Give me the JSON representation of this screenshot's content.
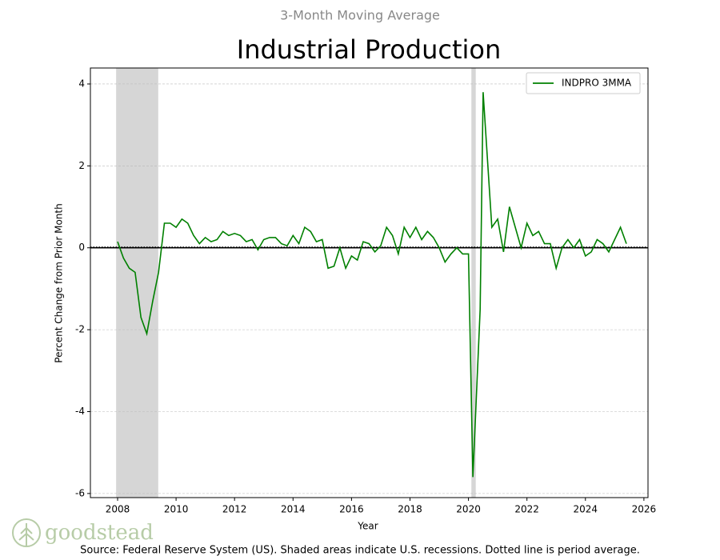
{
  "chart_data": {
    "type": "line",
    "subtitle": "3-Month Moving Average",
    "title": "Industrial Production",
    "x_label": "Year",
    "y_label": "Percent Change from Prior Month",
    "source": "Source: Federal Reserve System (US). Shaded areas indicate U.S. recessions. Dotted line is period average.",
    "logo": "goodstead",
    "legend_position": "upper right",
    "grid": true,
    "zero_line": true,
    "average": 0.02,
    "recessions": [
      [
        2007.95,
        2009.39
      ],
      [
        2020.1,
        2020.25
      ]
    ],
    "recession_color": "#d6d6d6",
    "xlim": [
      2007.07,
      2026.14
    ],
    "xticks": [
      2008,
      2010,
      2012,
      2014,
      2016,
      2018,
      2020,
      2022,
      2024,
      2026
    ],
    "ylim": [
      -6.1,
      4.39
    ],
    "yticks": [
      -6,
      -4,
      -2,
      0,
      2,
      4
    ],
    "x": [
      2008.0,
      2008.2,
      2008.4,
      2008.6,
      2008.8,
      2009.0,
      2009.2,
      2009.4,
      2009.6,
      2009.8,
      2010.0,
      2010.2,
      2010.4,
      2010.6,
      2010.8,
      2011.0,
      2011.2,
      2011.4,
      2011.6,
      2011.8,
      2012.0,
      2012.2,
      2012.4,
      2012.6,
      2012.8,
      2013.0,
      2013.2,
      2013.4,
      2013.6,
      2013.8,
      2014.0,
      2014.2,
      2014.4,
      2014.6,
      2014.8,
      2015.0,
      2015.2,
      2015.4,
      2015.6,
      2015.8,
      2016.0,
      2016.2,
      2016.4,
      2016.6,
      2016.8,
      2017.0,
      2017.2,
      2017.4,
      2017.6,
      2017.8,
      2018.0,
      2018.2,
      2018.4,
      2018.6,
      2018.8,
      2019.0,
      2019.2,
      2019.4,
      2019.6,
      2019.8,
      2020.0,
      2020.15,
      2020.4,
      2020.5,
      2020.8,
      2021.0,
      2021.2,
      2021.4,
      2021.6,
      2021.8,
      2022.0,
      2022.2,
      2022.4,
      2022.6,
      2022.8,
      2023.0,
      2023.2,
      2023.4,
      2023.6,
      2023.8,
      2024.0,
      2024.2,
      2024.4,
      2024.6,
      2024.8,
      2025.0,
      2025.2,
      2025.4
    ],
    "series": [
      {
        "name": "INDPRO 3MMA",
        "color": "#008000",
        "values": [
          0.15,
          -0.25,
          -0.5,
          -0.6,
          -1.7,
          -2.1,
          -1.3,
          -0.6,
          0.6,
          0.6,
          0.5,
          0.7,
          0.6,
          0.3,
          0.1,
          0.25,
          0.15,
          0.2,
          0.4,
          0.3,
          0.35,
          0.3,
          0.15,
          0.2,
          -0.05,
          0.2,
          0.25,
          0.25,
          0.1,
          0.05,
          0.3,
          0.1,
          0.5,
          0.4,
          0.15,
          0.2,
          -0.5,
          -0.45,
          0.0,
          -0.5,
          -0.2,
          -0.3,
          0.15,
          0.1,
          -0.1,
          0.05,
          0.5,
          0.3,
          -0.15,
          0.5,
          0.25,
          0.5,
          0.2,
          0.4,
          0.25,
          0.0,
          -0.35,
          -0.15,
          0.0,
          -0.15,
          -0.15,
          -5.6,
          -1.5,
          3.8,
          0.5,
          0.7,
          -0.1,
          1.0,
          0.5,
          0.0,
          0.6,
          0.3,
          0.4,
          0.1,
          0.1,
          -0.5,
          0.0,
          0.2,
          0.0,
          0.2,
          -0.2,
          -0.1,
          0.2,
          0.1,
          -0.1,
          0.2,
          0.5,
          0.1
        ]
      }
    ]
  }
}
